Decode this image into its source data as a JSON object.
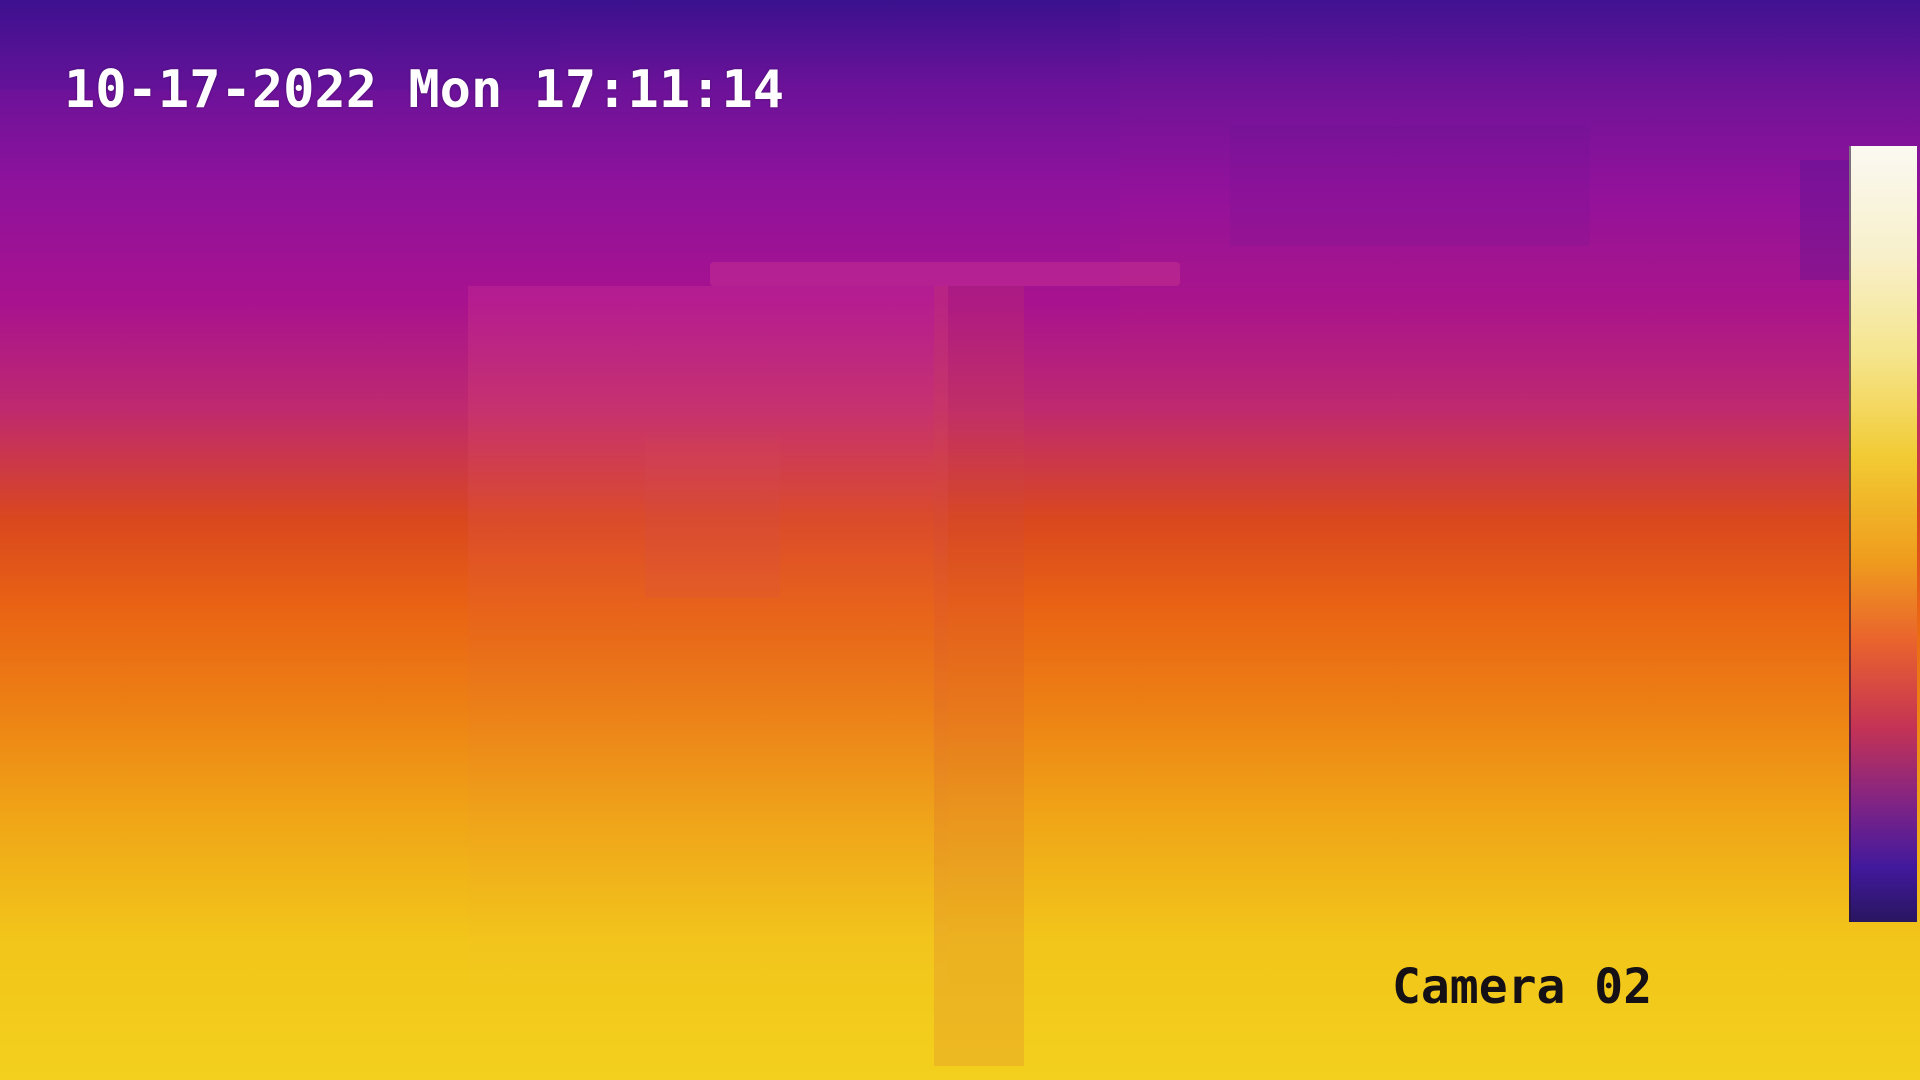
{
  "overlay": {
    "timestamp": "10-17-2022 Mon 17:11:14",
    "camera_label": "Camera 02"
  },
  "temperature_scale": {
    "palette_top": "#fbf9f2",
    "palette_bottom": "#291660"
  }
}
